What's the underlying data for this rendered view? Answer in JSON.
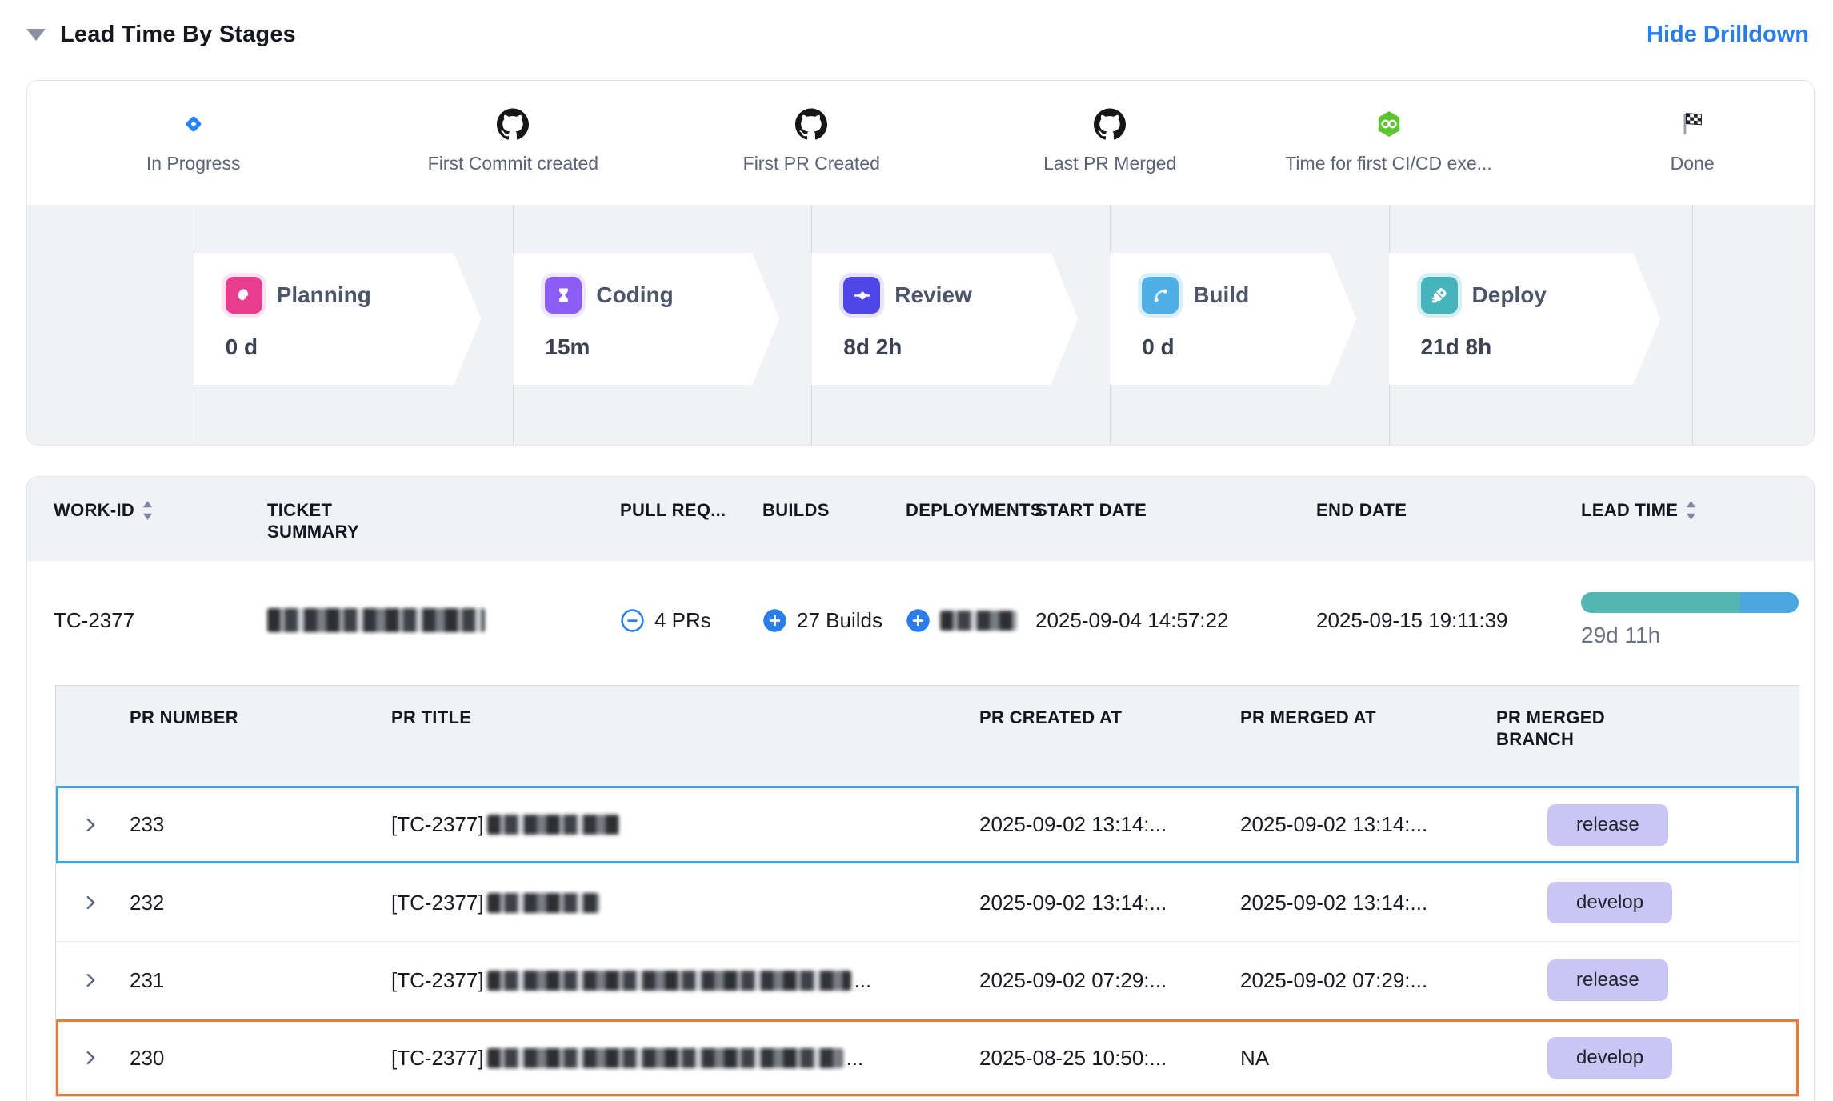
{
  "header": {
    "title": "Lead Time By Stages",
    "hide_drilldown_label": "Hide Drilldown",
    "link_color": "#2b7de9"
  },
  "milestones": [
    {
      "label": "In Progress",
      "icon": "jira"
    },
    {
      "label": "First Commit created",
      "icon": "github"
    },
    {
      "label": "First PR Created",
      "icon": "github"
    },
    {
      "label": "Last PR Merged",
      "icon": "github"
    },
    {
      "label": "Time for first CI/CD exe...",
      "icon": "cicd"
    },
    {
      "label": "Done",
      "icon": "finish-flag"
    }
  ],
  "stages": [
    {
      "name": "Planning",
      "duration": "0 d",
      "icon": "planning",
      "color": "#e83d8f",
      "halo": "rgba(232,61,143,0.15)"
    },
    {
      "name": "Coding",
      "duration": "15m",
      "icon": "coding",
      "color": "#8b5cf6",
      "halo": "rgba(139,92,246,0.15)"
    },
    {
      "name": "Review",
      "duration": "8d 2h",
      "icon": "review",
      "color": "#4f46e5",
      "halo": "rgba(79,70,229,0.15)"
    },
    {
      "name": "Build",
      "duration": "0 d",
      "icon": "build",
      "color": "#4fb0e8",
      "halo": "rgba(79,176,232,0.22)"
    },
    {
      "name": "Deploy",
      "duration": "21d 8h",
      "icon": "deploy",
      "color": "#45b5bb",
      "halo": "rgba(69,181,187,0.22)"
    }
  ],
  "work_table": {
    "columns": [
      "WORK-ID",
      "TICKET SUMMARY",
      "PULL REQ...",
      "BUILDS",
      "DEPLOYMENTS",
      "START DATE",
      "END DATE",
      "LEAD TIME"
    ],
    "row": {
      "work_id": "TC-2377",
      "ticket_summary_redacted": true,
      "summary_redact_w": 272,
      "pull_requests": "4 PRs",
      "builds": "27 Builds",
      "deployments_redacted": true,
      "deploy_redact_w": 96,
      "start_date": "2025-09-04 14:57:22",
      "end_date": "2025-09-15 19:11:39",
      "lead_time": "29d 11h",
      "lead_bar": {
        "teal_pct": 73,
        "blue_pct": 27,
        "teal": "#54b6b0",
        "blue": "#4aa7e0"
      }
    }
  },
  "pr_table": {
    "columns": [
      "PR NUMBER",
      "PR TITLE",
      "PR CREATED AT",
      "PR MERGED AT",
      "PR MERGED BRANCH"
    ],
    "rows": [
      {
        "number": "233",
        "title_prefix": "[TC-2377]",
        "redacted_width": 165,
        "ellipsis": false,
        "created": "2025-09-02 13:14:...",
        "merged": "2025-09-02 13:14:...",
        "branch": "release",
        "highlight": "blue"
      },
      {
        "number": "232",
        "title_prefix": "[TC-2377] ",
        "redacted_width": 140,
        "ellipsis": false,
        "created": "2025-09-02 13:14:...",
        "merged": "2025-09-02 13:14:...",
        "branch": "develop",
        "highlight": null
      },
      {
        "number": "231",
        "title_prefix": "[TC-2377] ",
        "redacted_width": 455,
        "ellipsis": true,
        "created": "2025-09-02 07:29:...",
        "merged": "2025-09-02 07:29:...",
        "branch": "release",
        "highlight": null
      },
      {
        "number": "230",
        "title_prefix": "[TC-2377]",
        "redacted_width": 445,
        "ellipsis": true,
        "created": "2025-08-25 10:50:...",
        "merged": "NA",
        "branch": "develop",
        "highlight": "orange"
      }
    ]
  },
  "colors": {
    "highlight_blue": "#44a3dc",
    "highlight_orange": "#e8793c",
    "badge_bg": "#c9c6f4",
    "accent_blue": "#2b7de9"
  }
}
